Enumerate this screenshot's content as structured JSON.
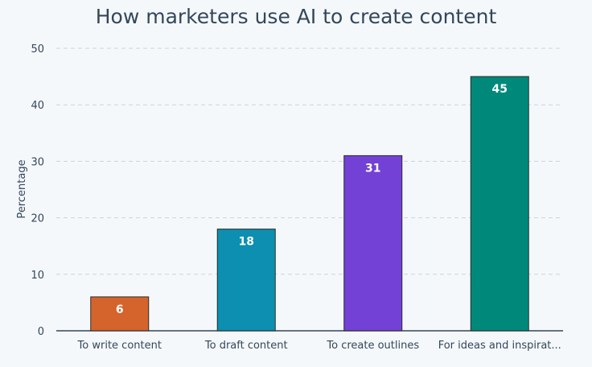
{
  "chart_data": {
    "type": "bar",
    "title": "How marketers use AI to create content",
    "xlabel": "",
    "ylabel": "Percentage",
    "categories": [
      "To write content",
      "To draft content",
      "To create outlines",
      "For ideas and inspirat..."
    ],
    "values": [
      6,
      18,
      31,
      45
    ],
    "data_labels": [
      "6",
      "18",
      "31",
      "45"
    ],
    "colors": [
      "#d4642c",
      "#0c8fb0",
      "#7341d6",
      "#00897b"
    ],
    "ylim": [
      0,
      50
    ],
    "yticks": [
      0,
      10,
      20,
      30,
      40,
      50
    ],
    "ytick_labels": [
      "0",
      "10",
      "20",
      "30",
      "40",
      "50"
    ],
    "grid": true,
    "legend": "none"
  }
}
